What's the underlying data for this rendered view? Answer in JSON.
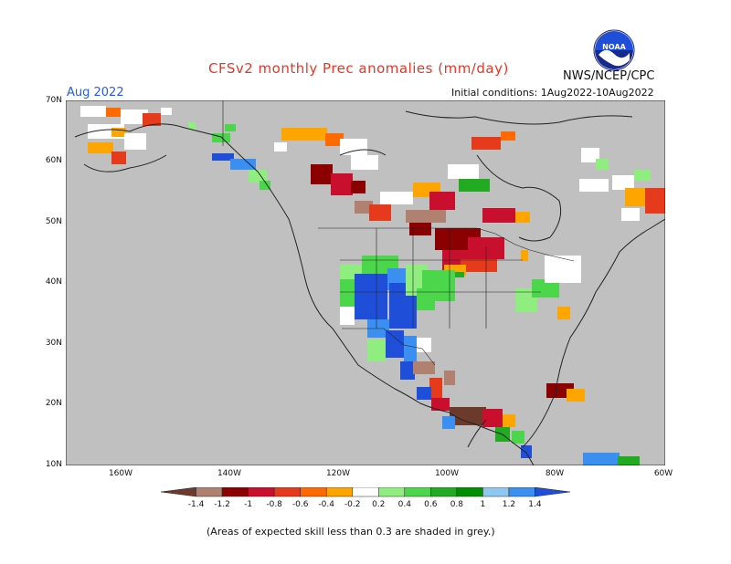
{
  "title": "CFSv2 monthly Prec anomalies (mm/day)",
  "month": "Aug 2022",
  "agency": "NWS/NCEP/CPC",
  "initial_conditions": "Initial conditions: 1Aug2022-10Aug2022",
  "logo_label": "NOAA",
  "footnote": "(Areas of expected skill less than 0.3 are shaded in grey.)",
  "lat_labels": [
    "70N",
    "60N",
    "50N",
    "40N",
    "30N",
    "20N",
    "10N"
  ],
  "lon_labels": [
    "160W",
    "140W",
    "120W",
    "100W",
    "80W",
    "60W"
  ],
  "legend": {
    "labels": [
      "-1.4",
      "-1.2",
      "-1",
      "-0.8",
      "-0.6",
      "-0.4",
      "-0.2",
      "0.2",
      "0.4",
      "0.6",
      "0.8",
      "1",
      "1.2",
      "1.4"
    ],
    "colors": [
      "#6b3a2a",
      "#b08070",
      "#8b0000",
      "#c8102e",
      "#e53a1c",
      "#ff6a00",
      "#ffa500",
      "#ffffff",
      "#90ee80",
      "#4cd64c",
      "#22aa22",
      "#008f00",
      "#8ec8f0",
      "#3a8ff0",
      "#1f4fd8"
    ]
  },
  "colors": {
    "grey_mask": "#c0c0c0",
    "title": "#e0392b",
    "month": "#2a5bd7"
  }
}
